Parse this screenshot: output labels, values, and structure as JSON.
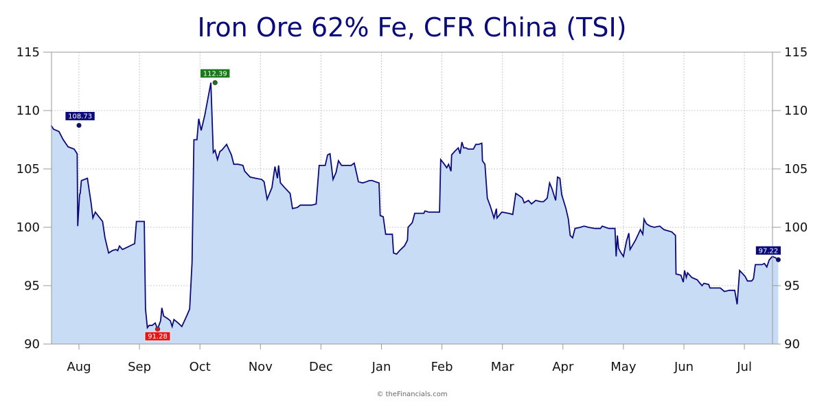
{
  "chart_data": {
    "type": "area",
    "title": "Iron Ore 62% Fe, CFR China (TSI)",
    "ylim": [
      90,
      115
    ],
    "yticks": [
      90,
      95,
      100,
      105,
      110,
      115
    ],
    "y_axis_both_sides": true,
    "grid": true,
    "legend": "none",
    "month_labels": [
      "Aug",
      "Sep",
      "Oct",
      "Nov",
      "Dec",
      "Jan",
      "Feb",
      "Mar",
      "Apr",
      "May",
      "Jun",
      "Jul"
    ],
    "colors": {
      "line": "#0a0a7a",
      "fill": "#c8dcf5",
      "max_badge": "#1a7a1a",
      "min_badge": "#e01818",
      "end_badge": "#0a0a7a"
    },
    "annotations": [
      {
        "label": "108.73",
        "kind": "start",
        "month_index": 0,
        "value": 108.73
      },
      {
        "label": "112.39",
        "kind": "max",
        "month_index": 2.25,
        "value": 112.39
      },
      {
        "label": "91.28",
        "kind": "min",
        "month_index": 1.3,
        "value": 91.28
      },
      {
        "label": "97.22",
        "kind": "end",
        "month_index": 11.56,
        "value": 97.22
      }
    ],
    "series": [
      {
        "points": [
          [
            -0.46,
            108.73
          ],
          [
            -0.42,
            108.4
          ],
          [
            -0.33,
            108.2
          ],
          [
            -0.26,
            107.5
          ],
          [
            -0.18,
            106.9
          ],
          [
            -0.08,
            106.7
          ],
          [
            -0.03,
            106.3
          ],
          [
            -0.02,
            100.1
          ],
          [
            0.01,
            102.8
          ],
          [
            0.02,
            102.9
          ],
          [
            0.04,
            104.0
          ],
          [
            0.14,
            104.2
          ],
          [
            0.2,
            102.1
          ],
          [
            0.23,
            100.8
          ],
          [
            0.27,
            101.3
          ],
          [
            0.39,
            100.5
          ],
          [
            0.43,
            99.1
          ],
          [
            0.49,
            97.8
          ],
          [
            0.55,
            98.0
          ],
          [
            0.61,
            98.1
          ],
          [
            0.64,
            98.0
          ],
          [
            0.67,
            98.4
          ],
          [
            0.72,
            98.1
          ],
          [
            0.8,
            98.3
          ],
          [
            0.88,
            98.5
          ],
          [
            0.92,
            98.6
          ],
          [
            0.95,
            100.5
          ],
          [
            1.08,
            100.5
          ],
          [
            1.1,
            93.0
          ],
          [
            1.13,
            91.4
          ],
          [
            1.16,
            91.6
          ],
          [
            1.21,
            91.6
          ],
          [
            1.26,
            91.8
          ],
          [
            1.3,
            91.28
          ],
          [
            1.35,
            92.0
          ],
          [
            1.37,
            93.1
          ],
          [
            1.4,
            92.4
          ],
          [
            1.46,
            92.2
          ],
          [
            1.51,
            92.0
          ],
          [
            1.54,
            91.5
          ],
          [
            1.57,
            92.1
          ],
          [
            1.64,
            91.8
          ],
          [
            1.7,
            91.5
          ],
          [
            1.78,
            92.4
          ],
          [
            1.83,
            93.0
          ],
          [
            1.87,
            97.0
          ],
          [
            1.9,
            107.5
          ],
          [
            1.95,
            107.5
          ],
          [
            1.98,
            109.3
          ],
          [
            2.02,
            108.3
          ],
          [
            2.08,
            109.6
          ],
          [
            2.13,
            111.0
          ],
          [
            2.18,
            112.39
          ],
          [
            2.22,
            106.4
          ],
          [
            2.25,
            106.6
          ],
          [
            2.29,
            105.8
          ],
          [
            2.33,
            106.5
          ],
          [
            2.36,
            106.6
          ],
          [
            2.44,
            107.1
          ],
          [
            2.52,
            106.2
          ],
          [
            2.56,
            105.4
          ],
          [
            2.63,
            105.4
          ],
          [
            2.71,
            105.3
          ],
          [
            2.74,
            104.8
          ],
          [
            2.83,
            104.3
          ],
          [
            2.92,
            104.2
          ],
          [
            3.02,
            104.1
          ],
          [
            3.06,
            103.9
          ],
          [
            3.11,
            102.4
          ],
          [
            3.19,
            103.4
          ],
          [
            3.24,
            105.2
          ],
          [
            3.28,
            104.2
          ],
          [
            3.3,
            105.3
          ],
          [
            3.33,
            103.8
          ],
          [
            3.4,
            103.4
          ],
          [
            3.49,
            102.9
          ],
          [
            3.53,
            101.6
          ],
          [
            3.61,
            101.7
          ],
          [
            3.66,
            101.9
          ],
          [
            3.75,
            101.9
          ],
          [
            3.85,
            101.9
          ],
          [
            3.92,
            102.0
          ],
          [
            3.97,
            105.3
          ],
          [
            4.07,
            105.3
          ],
          [
            4.11,
            106.2
          ],
          [
            4.15,
            106.3
          ],
          [
            4.2,
            104.1
          ],
          [
            4.25,
            104.7
          ],
          [
            4.29,
            105.7
          ],
          [
            4.34,
            105.3
          ],
          [
            4.43,
            105.3
          ],
          [
            4.5,
            105.3
          ],
          [
            4.55,
            105.5
          ],
          [
            4.62,
            103.9
          ],
          [
            4.69,
            103.8
          ],
          [
            4.75,
            103.9
          ],
          [
            4.8,
            104.0
          ],
          [
            4.85,
            104.0
          ],
          [
            4.9,
            103.9
          ],
          [
            4.96,
            103.8
          ],
          [
            4.98,
            101.0
          ],
          [
            5.03,
            100.9
          ],
          [
            5.07,
            99.4
          ],
          [
            5.13,
            99.4
          ],
          [
            5.18,
            99.4
          ],
          [
            5.2,
            97.8
          ],
          [
            5.25,
            97.7
          ],
          [
            5.3,
            98.0
          ],
          [
            5.38,
            98.4
          ],
          [
            5.43,
            98.9
          ],
          [
            5.44,
            100.0
          ],
          [
            5.51,
            100.4
          ],
          [
            5.55,
            101.2
          ],
          [
            5.63,
            101.2
          ],
          [
            5.7,
            101.2
          ],
          [
            5.72,
            101.4
          ],
          [
            5.78,
            101.3
          ],
          [
            5.87,
            101.3
          ],
          [
            5.96,
            101.3
          ],
          [
            5.98,
            105.8
          ],
          [
            6.04,
            105.4
          ],
          [
            6.08,
            105.1
          ],
          [
            6.11,
            105.4
          ],
          [
            6.15,
            104.8
          ],
          [
            6.16,
            106.2
          ],
          [
            6.21,
            106.5
          ],
          [
            6.27,
            106.8
          ],
          [
            6.3,
            106.3
          ],
          [
            6.33,
            107.3
          ],
          [
            6.36,
            106.8
          ],
          [
            6.4,
            106.8
          ],
          [
            6.43,
            106.7
          ],
          [
            6.52,
            106.7
          ],
          [
            6.56,
            107.1
          ],
          [
            6.6,
            107.1
          ],
          [
            6.66,
            107.2
          ],
          [
            6.67,
            105.7
          ],
          [
            6.71,
            105.4
          ],
          [
            6.75,
            102.5
          ],
          [
            6.8,
            101.8
          ],
          [
            6.86,
            100.8
          ],
          [
            6.9,
            101.6
          ],
          [
            6.91,
            100.8
          ],
          [
            6.99,
            101.3
          ],
          [
            7.1,
            101.2
          ],
          [
            7.17,
            101.1
          ],
          [
            7.22,
            102.9
          ],
          [
            7.28,
            102.7
          ],
          [
            7.33,
            102.5
          ],
          [
            7.36,
            102.1
          ],
          [
            7.43,
            102.3
          ],
          [
            7.48,
            102.0
          ],
          [
            7.55,
            102.3
          ],
          [
            7.63,
            102.2
          ],
          [
            7.68,
            102.2
          ],
          [
            7.74,
            102.5
          ],
          [
            7.78,
            103.8
          ],
          [
            7.82,
            103.3
          ],
          [
            7.88,
            102.3
          ],
          [
            7.91,
            104.3
          ],
          [
            7.95,
            104.2
          ],
          [
            7.98,
            102.8
          ],
          [
            8.05,
            101.6
          ],
          [
            8.09,
            100.7
          ],
          [
            8.12,
            99.3
          ],
          [
            8.16,
            99.1
          ],
          [
            8.2,
            99.9
          ],
          [
            8.29,
            100.0
          ],
          [
            8.35,
            100.1
          ],
          [
            8.42,
            100.0
          ],
          [
            8.53,
            99.9
          ],
          [
            8.62,
            99.9
          ],
          [
            8.65,
            100.1
          ],
          [
            8.7,
            100.0
          ],
          [
            8.76,
            99.9
          ],
          [
            8.86,
            99.9
          ],
          [
            8.88,
            97.5
          ],
          [
            8.9,
            99.3
          ],
          [
            8.92,
            98.2
          ],
          [
            8.95,
            97.9
          ],
          [
            9.0,
            97.5
          ],
          [
            9.05,
            98.8
          ],
          [
            9.09,
            99.5
          ],
          [
            9.11,
            98.1
          ],
          [
            9.2,
            98.9
          ],
          [
            9.28,
            99.8
          ],
          [
            9.32,
            99.4
          ],
          [
            9.34,
            100.7
          ],
          [
            9.38,
            100.3
          ],
          [
            9.44,
            100.1
          ],
          [
            9.51,
            100.0
          ],
          [
            9.6,
            100.1
          ],
          [
            9.67,
            99.8
          ],
          [
            9.8,
            99.6
          ],
          [
            9.86,
            99.3
          ],
          [
            9.87,
            96.0
          ],
          [
            9.95,
            95.9
          ],
          [
            9.99,
            95.3
          ],
          [
            10.01,
            96.3
          ],
          [
            10.04,
            95.7
          ],
          [
            10.06,
            96.1
          ],
          [
            10.13,
            95.7
          ],
          [
            10.22,
            95.5
          ],
          [
            10.25,
            95.3
          ],
          [
            10.3,
            95.0
          ],
          [
            10.33,
            95.2
          ],
          [
            10.41,
            95.1
          ],
          [
            10.43,
            94.8
          ],
          [
            10.56,
            94.8
          ],
          [
            10.6,
            94.8
          ],
          [
            10.67,
            94.5
          ],
          [
            10.75,
            94.6
          ],
          [
            10.84,
            94.6
          ],
          [
            10.88,
            93.4
          ],
          [
            10.92,
            96.3
          ],
          [
            11.01,
            95.8
          ],
          [
            11.05,
            95.4
          ],
          [
            11.12,
            95.4
          ],
          [
            11.15,
            95.6
          ],
          [
            11.18,
            96.8
          ],
          [
            11.29,
            96.8
          ],
          [
            11.33,
            96.9
          ],
          [
            11.37,
            96.6
          ],
          [
            11.41,
            97.2
          ],
          [
            11.46,
            97.5
          ],
          [
            11.51,
            97.4
          ],
          [
            11.56,
            97.22
          ]
        ]
      }
    ]
  },
  "footer": {
    "credit": "© theFinancials.com"
  }
}
